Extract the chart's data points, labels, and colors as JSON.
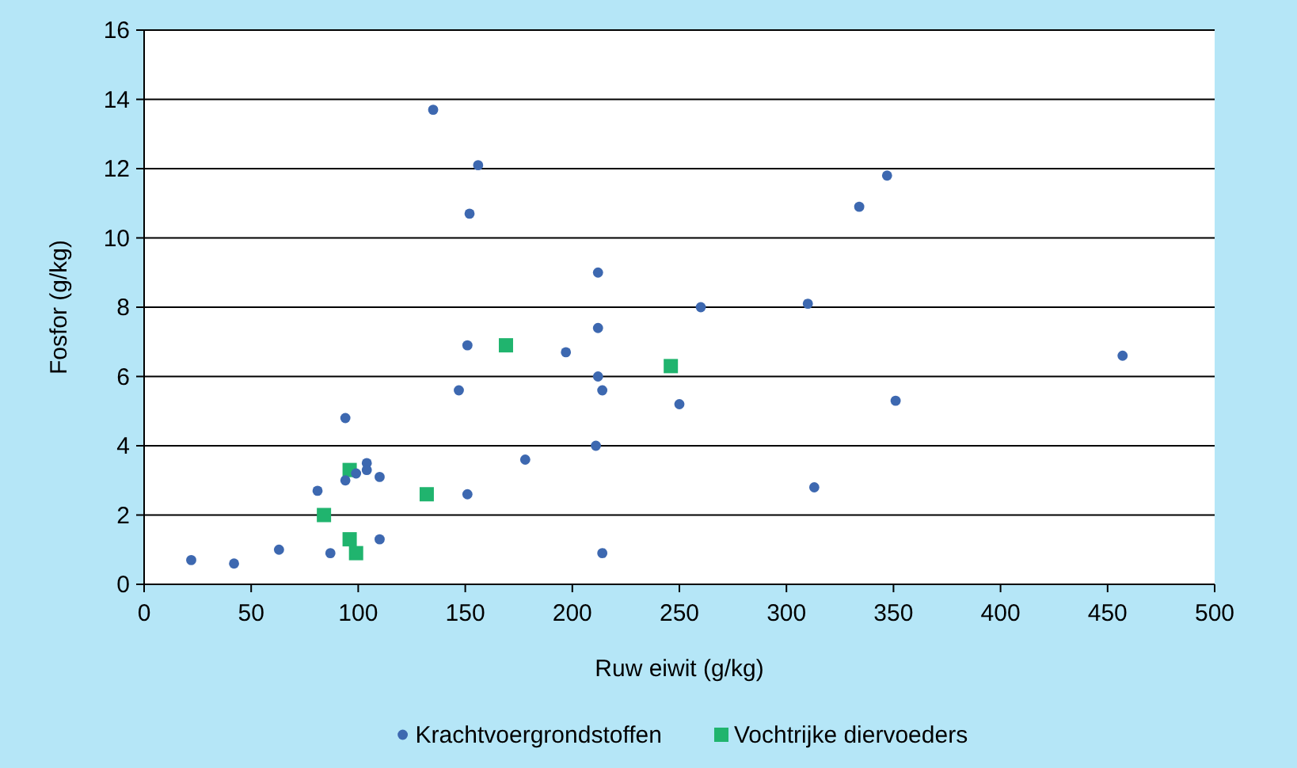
{
  "chart_data": {
    "type": "scatter",
    "xlabel": "Ruw eiwit (g/kg)",
    "ylabel": "Fosfor (g/kg)",
    "xlim": [
      0,
      500
    ],
    "xticks": [
      0,
      50,
      100,
      150,
      200,
      250,
      300,
      350,
      400,
      450,
      500
    ],
    "ylim": [
      0,
      16
    ],
    "yticks": [
      0,
      2,
      4,
      6,
      8,
      10,
      12,
      14,
      16
    ],
    "grid": "y",
    "legend": "bottom",
    "series": [
      {
        "name": "Krachtvoergrondstoffen",
        "color": "#3d68b0",
        "marker": "circle",
        "x": [
          22,
          42,
          63,
          81,
          87,
          94,
          94,
          99,
          104,
          104,
          110,
          110,
          135,
          156,
          152,
          151,
          147,
          151,
          178,
          197,
          212,
          212,
          212,
          214,
          211,
          214,
          250,
          260,
          310,
          313,
          334,
          347,
          351,
          457
        ],
        "values": [
          0.7,
          0.6,
          1.0,
          2.7,
          0.9,
          4.8,
          3.0,
          3.2,
          3.5,
          3.3,
          3.1,
          1.3,
          13.7,
          12.1,
          10.7,
          6.9,
          5.6,
          2.6,
          3.6,
          6.7,
          9.0,
          7.4,
          6.0,
          5.6,
          4.0,
          0.9,
          5.2,
          8.0,
          8.1,
          2.8,
          10.9,
          11.8,
          5.3,
          6.6
        ]
      },
      {
        "name": "Vochtrijke diervoeders",
        "color": "#20b46e",
        "marker": "square",
        "x": [
          84,
          96,
          96,
          99,
          132,
          169,
          246
        ],
        "values": [
          2.0,
          3.3,
          1.3,
          0.9,
          2.6,
          6.9,
          6.3
        ]
      }
    ]
  }
}
